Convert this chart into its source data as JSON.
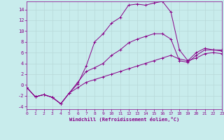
{
  "xlabel": "Windchill (Refroidissement éolien,°C)",
  "xlim": [
    0,
    23
  ],
  "ylim": [
    -4.5,
    15.5
  ],
  "xticks": [
    0,
    1,
    2,
    3,
    4,
    5,
    6,
    7,
    8,
    9,
    10,
    11,
    12,
    13,
    14,
    15,
    16,
    17,
    18,
    19,
    20,
    21,
    22,
    23
  ],
  "yticks": [
    -4,
    -2,
    0,
    2,
    4,
    6,
    8,
    10,
    12,
    14
  ],
  "bg_color": "#c8ecec",
  "grid_color": "#b8d8d8",
  "line_color": "#880088",
  "line_top_x": [
    0,
    1,
    2,
    3,
    4,
    5,
    6,
    7,
    8,
    9,
    10,
    11,
    12,
    13,
    14,
    15,
    16,
    17,
    18,
    19,
    20,
    21,
    22,
    23
  ],
  "line_top_y": [
    -0.5,
    -2.2,
    -1.8,
    -2.3,
    -3.5,
    -1.5,
    0.2,
    3.5,
    8.0,
    9.5,
    11.5,
    12.5,
    14.8,
    15.0,
    14.8,
    15.2,
    15.5,
    13.5,
    6.5,
    4.5,
    6.0,
    6.8,
    6.5,
    6.5
  ],
  "line_mid_x": [
    0,
    1,
    2,
    3,
    4,
    5,
    6,
    7,
    8,
    9,
    10,
    11,
    12,
    13,
    14,
    15,
    16,
    17,
    18,
    19,
    20,
    21,
    22,
    23
  ],
  "line_mid_y": [
    -0.5,
    -2.2,
    -1.8,
    -2.3,
    -3.5,
    -1.5,
    0.5,
    2.5,
    3.2,
    4.0,
    5.5,
    6.5,
    7.8,
    8.5,
    9.0,
    9.5,
    9.5,
    8.5,
    4.5,
    4.2,
    5.5,
    6.5,
    6.5,
    6.3
  ],
  "line_bot_x": [
    0,
    1,
    2,
    3,
    4,
    5,
    6,
    7,
    8,
    9,
    10,
    11,
    12,
    13,
    14,
    15,
    16,
    17,
    18,
    19,
    20,
    21,
    22,
    23
  ],
  "line_bot_y": [
    -0.5,
    -2.2,
    -1.8,
    -2.3,
    -3.5,
    -1.5,
    -0.5,
    0.5,
    1.0,
    1.5,
    2.0,
    2.5,
    3.0,
    3.5,
    4.0,
    4.5,
    5.0,
    5.5,
    4.8,
    4.5,
    5.0,
    5.8,
    6.0,
    5.8
  ]
}
